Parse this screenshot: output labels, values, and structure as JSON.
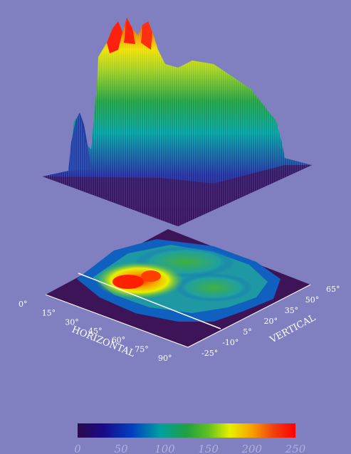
{
  "chart_data": {
    "type": "heatmap",
    "title": "",
    "x_axis": {
      "label": "HORIZONTAL",
      "ticks": [
        "0°",
        "15°",
        "30°",
        "45°",
        "60°",
        "75°",
        "90°"
      ],
      "range": [
        0,
        90
      ]
    },
    "y_axis": {
      "label": "VERTICAL",
      "ticks": [
        "-25°",
        "-10°",
        "5°",
        "20°",
        "35°",
        "50°",
        "65°"
      ],
      "range": [
        -25,
        65
      ]
    },
    "value_range": [
      0,
      250
    ],
    "colorbar": {
      "ticks": [
        "0",
        "50",
        "100",
        "150",
        "200",
        "250"
      ],
      "stops": [
        "#2a0a4a",
        "#1a0a8a",
        "#0040c0",
        "#00a0a0",
        "#20a040",
        "#60c020",
        "#e8f000",
        "#f8a000",
        "#f04010",
        "#ff0000"
      ]
    },
    "surface_peaks": [
      {
        "h": 31,
        "v": 38,
        "value": 245
      },
      {
        "h": 37,
        "v": 40,
        "value": 238
      },
      {
        "h": 43,
        "v": 42,
        "value": 230
      }
    ],
    "notes_visible": "3-D surface over 2-D heat map with colour bar"
  }
}
